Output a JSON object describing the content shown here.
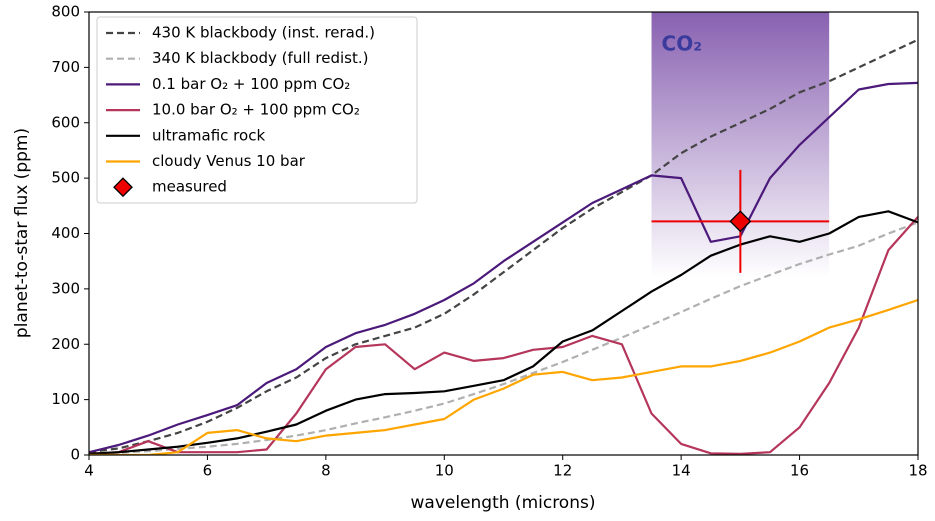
{
  "chart_data": {
    "type": "line",
    "xlabel": "wavelength (microns)",
    "ylabel": "planet-to-star flux (ppm)",
    "xlim": [
      4,
      18
    ],
    "ylim": [
      0,
      800
    ],
    "xticks": [
      4,
      6,
      8,
      10,
      12,
      14,
      16,
      18
    ],
    "yticks": [
      0,
      100,
      200,
      300,
      400,
      500,
      600,
      700,
      800
    ],
    "legend": "upper left",
    "band": {
      "label": "CO₂",
      "xlim": [
        13.5,
        16.5
      ],
      "color": "#7b4fa8"
    },
    "x": [
      4,
      4.5,
      5,
      5.5,
      6,
      6.5,
      7,
      7.5,
      8,
      8.5,
      9,
      9.5,
      10,
      10.5,
      11,
      11.5,
      12,
      12.5,
      13,
      13.5,
      14,
      14.5,
      15,
      15.5,
      16,
      16.5,
      17,
      17.5,
      18
    ],
    "series": [
      {
        "name": "430 K blackbody (inst. rerad.)",
        "color": "#444444",
        "style": "dashed",
        "values": [
          5,
          12,
          25,
          40,
          60,
          85,
          115,
          140,
          175,
          200,
          215,
          230,
          255,
          290,
          330,
          370,
          410,
          445,
          475,
          505,
          545,
          575,
          600,
          625,
          655,
          675,
          700,
          725,
          750
        ]
      },
      {
        "name": "340 K blackbody (full redist.)",
        "color": "#b0b0b0",
        "style": "dashed",
        "values": [
          2,
          4,
          7,
          11,
          15,
          20,
          27,
          35,
          45,
          57,
          68,
          80,
          93,
          110,
          128,
          148,
          168,
          190,
          212,
          235,
          258,
          282,
          305,
          325,
          345,
          362,
          378,
          400,
          420
        ]
      },
      {
        "name": "0.1 bar O₂ + 100 ppm CO₂",
        "color": "#4b1a7a",
        "style": "solid",
        "values": [
          5,
          18,
          35,
          55,
          72,
          90,
          130,
          155,
          195,
          220,
          235,
          255,
          280,
          310,
          350,
          385,
          420,
          455,
          480,
          505,
          500,
          385,
          395,
          500,
          560,
          610,
          660,
          670,
          672
        ]
      },
      {
        "name": "10.0 bar O₂ + 100 ppm CO₂",
        "color": "#b5365a",
        "style": "solid",
        "values": [
          2,
          5,
          25,
          5,
          5,
          5,
          10,
          75,
          155,
          195,
          200,
          155,
          185,
          170,
          175,
          190,
          195,
          215,
          200,
          75,
          20,
          3,
          2,
          5,
          50,
          130,
          230,
          370,
          430
        ]
      },
      {
        "name": "ultramafic rock",
        "color": "#000000",
        "style": "solid",
        "values": [
          2,
          5,
          10,
          15,
          22,
          30,
          42,
          55,
          80,
          100,
          110,
          112,
          115,
          125,
          135,
          160,
          205,
          225,
          260,
          295,
          325,
          360,
          380,
          395,
          385,
          400,
          430,
          440,
          420
        ]
      },
      {
        "name": "cloudy Venus 10 bar",
        "color": "#ffa500",
        "style": "solid",
        "values": [
          0,
          0,
          0,
          5,
          40,
          45,
          30,
          25,
          35,
          40,
          45,
          55,
          65,
          100,
          120,
          145,
          150,
          135,
          140,
          150,
          160,
          160,
          170,
          185,
          205,
          230,
          245,
          262,
          280
        ]
      }
    ],
    "measured": {
      "name": "measured",
      "x": 15,
      "y": 422,
      "xerr": 1.5,
      "yerr": 93,
      "color": "#ee0000"
    }
  }
}
